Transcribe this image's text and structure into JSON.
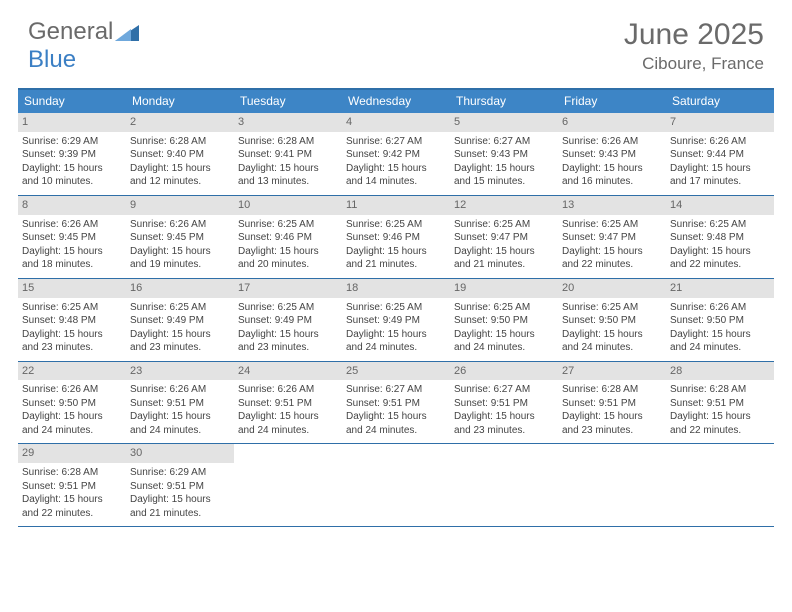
{
  "logo": {
    "word1": "General",
    "word2": "Blue"
  },
  "header": {
    "month": "June 2025",
    "location": "Ciboure, France"
  },
  "colors": {
    "header_bg": "#3d85c6",
    "border": "#2f6fa8",
    "daynum_bg": "#e3e3e3",
    "text": "#444444",
    "muted": "#6a6a6a",
    "white": "#ffffff"
  },
  "weekdays": [
    "Sunday",
    "Monday",
    "Tuesday",
    "Wednesday",
    "Thursday",
    "Friday",
    "Saturday"
  ],
  "weeks": [
    [
      {
        "n": "1",
        "sr": "Sunrise: 6:29 AM",
        "ss": "Sunset: 9:39 PM",
        "dl": "Daylight: 15 hours and 10 minutes."
      },
      {
        "n": "2",
        "sr": "Sunrise: 6:28 AM",
        "ss": "Sunset: 9:40 PM",
        "dl": "Daylight: 15 hours and 12 minutes."
      },
      {
        "n": "3",
        "sr": "Sunrise: 6:28 AM",
        "ss": "Sunset: 9:41 PM",
        "dl": "Daylight: 15 hours and 13 minutes."
      },
      {
        "n": "4",
        "sr": "Sunrise: 6:27 AM",
        "ss": "Sunset: 9:42 PM",
        "dl": "Daylight: 15 hours and 14 minutes."
      },
      {
        "n": "5",
        "sr": "Sunrise: 6:27 AM",
        "ss": "Sunset: 9:43 PM",
        "dl": "Daylight: 15 hours and 15 minutes."
      },
      {
        "n": "6",
        "sr": "Sunrise: 6:26 AM",
        "ss": "Sunset: 9:43 PM",
        "dl": "Daylight: 15 hours and 16 minutes."
      },
      {
        "n": "7",
        "sr": "Sunrise: 6:26 AM",
        "ss": "Sunset: 9:44 PM",
        "dl": "Daylight: 15 hours and 17 minutes."
      }
    ],
    [
      {
        "n": "8",
        "sr": "Sunrise: 6:26 AM",
        "ss": "Sunset: 9:45 PM",
        "dl": "Daylight: 15 hours and 18 minutes."
      },
      {
        "n": "9",
        "sr": "Sunrise: 6:26 AM",
        "ss": "Sunset: 9:45 PM",
        "dl": "Daylight: 15 hours and 19 minutes."
      },
      {
        "n": "10",
        "sr": "Sunrise: 6:25 AM",
        "ss": "Sunset: 9:46 PM",
        "dl": "Daylight: 15 hours and 20 minutes."
      },
      {
        "n": "11",
        "sr": "Sunrise: 6:25 AM",
        "ss": "Sunset: 9:46 PM",
        "dl": "Daylight: 15 hours and 21 minutes."
      },
      {
        "n": "12",
        "sr": "Sunrise: 6:25 AM",
        "ss": "Sunset: 9:47 PM",
        "dl": "Daylight: 15 hours and 21 minutes."
      },
      {
        "n": "13",
        "sr": "Sunrise: 6:25 AM",
        "ss": "Sunset: 9:47 PM",
        "dl": "Daylight: 15 hours and 22 minutes."
      },
      {
        "n": "14",
        "sr": "Sunrise: 6:25 AM",
        "ss": "Sunset: 9:48 PM",
        "dl": "Daylight: 15 hours and 22 minutes."
      }
    ],
    [
      {
        "n": "15",
        "sr": "Sunrise: 6:25 AM",
        "ss": "Sunset: 9:48 PM",
        "dl": "Daylight: 15 hours and 23 minutes."
      },
      {
        "n": "16",
        "sr": "Sunrise: 6:25 AM",
        "ss": "Sunset: 9:49 PM",
        "dl": "Daylight: 15 hours and 23 minutes."
      },
      {
        "n": "17",
        "sr": "Sunrise: 6:25 AM",
        "ss": "Sunset: 9:49 PM",
        "dl": "Daylight: 15 hours and 23 minutes."
      },
      {
        "n": "18",
        "sr": "Sunrise: 6:25 AM",
        "ss": "Sunset: 9:49 PM",
        "dl": "Daylight: 15 hours and 24 minutes."
      },
      {
        "n": "19",
        "sr": "Sunrise: 6:25 AM",
        "ss": "Sunset: 9:50 PM",
        "dl": "Daylight: 15 hours and 24 minutes."
      },
      {
        "n": "20",
        "sr": "Sunrise: 6:25 AM",
        "ss": "Sunset: 9:50 PM",
        "dl": "Daylight: 15 hours and 24 minutes."
      },
      {
        "n": "21",
        "sr": "Sunrise: 6:26 AM",
        "ss": "Sunset: 9:50 PM",
        "dl": "Daylight: 15 hours and 24 minutes."
      }
    ],
    [
      {
        "n": "22",
        "sr": "Sunrise: 6:26 AM",
        "ss": "Sunset: 9:50 PM",
        "dl": "Daylight: 15 hours and 24 minutes."
      },
      {
        "n": "23",
        "sr": "Sunrise: 6:26 AM",
        "ss": "Sunset: 9:51 PM",
        "dl": "Daylight: 15 hours and 24 minutes."
      },
      {
        "n": "24",
        "sr": "Sunrise: 6:26 AM",
        "ss": "Sunset: 9:51 PM",
        "dl": "Daylight: 15 hours and 24 minutes."
      },
      {
        "n": "25",
        "sr": "Sunrise: 6:27 AM",
        "ss": "Sunset: 9:51 PM",
        "dl": "Daylight: 15 hours and 24 minutes."
      },
      {
        "n": "26",
        "sr": "Sunrise: 6:27 AM",
        "ss": "Sunset: 9:51 PM",
        "dl": "Daylight: 15 hours and 23 minutes."
      },
      {
        "n": "27",
        "sr": "Sunrise: 6:28 AM",
        "ss": "Sunset: 9:51 PM",
        "dl": "Daylight: 15 hours and 23 minutes."
      },
      {
        "n": "28",
        "sr": "Sunrise: 6:28 AM",
        "ss": "Sunset: 9:51 PM",
        "dl": "Daylight: 15 hours and 22 minutes."
      }
    ],
    [
      {
        "n": "29",
        "sr": "Sunrise: 6:28 AM",
        "ss": "Sunset: 9:51 PM",
        "dl": "Daylight: 15 hours and 22 minutes."
      },
      {
        "n": "30",
        "sr": "Sunrise: 6:29 AM",
        "ss": "Sunset: 9:51 PM",
        "dl": "Daylight: 15 hours and 21 minutes."
      },
      null,
      null,
      null,
      null,
      null
    ]
  ]
}
